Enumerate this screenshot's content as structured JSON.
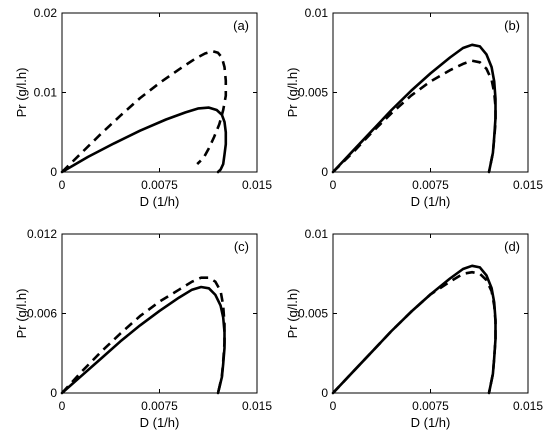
{
  "chart_data": [
    {
      "type": "line",
      "panel_label": "(a)",
      "xlabel": "D (1/h)",
      "ylabel": "Pr (g/l.h)",
      "xlim": [
        0,
        0.015
      ],
      "ylim": [
        0,
        0.02
      ],
      "xticks": [
        "0",
        "0.0075",
        "0.015"
      ],
      "xtick_values": [
        0,
        0.0075,
        0.015
      ],
      "yticks": [
        "0",
        "0.01",
        "0.02"
      ],
      "ytick_values": [
        0,
        0.01,
        0.02
      ],
      "series": [
        {
          "style": "solid",
          "x": [
            0,
            0.002,
            0.004,
            0.006,
            0.008,
            0.0095,
            0.0105,
            0.0113,
            0.0119,
            0.0123,
            0.0125,
            0.0126,
            0.0126,
            0.0125,
            0.0124,
            0.0122,
            0.012
          ],
          "y": [
            0,
            0.0019,
            0.0036,
            0.0052,
            0.0066,
            0.0075,
            0.008,
            0.0081,
            0.0078,
            0.0072,
            0.0063,
            0.005,
            0.0035,
            0.0022,
            0.001,
            0.0003,
            0
          ]
        },
        {
          "style": "dashed",
          "x": [
            0,
            0.0015,
            0.003,
            0.0045,
            0.006,
            0.0075,
            0.009,
            0.0102,
            0.011,
            0.0116,
            0.012,
            0.0123,
            0.0125,
            0.0126,
            0.0126,
            0.0124,
            0.0121,
            0.0117,
            0.0113,
            0.0109,
            0.0104
          ],
          "y": [
            0,
            0.0024,
            0.0048,
            0.0071,
            0.0093,
            0.0112,
            0.0129,
            0.0142,
            0.0149,
            0.0152,
            0.015,
            0.0144,
            0.0132,
            0.0115,
            0.0096,
            0.0078,
            0.006,
            0.0044,
            0.003,
            0.0018,
            0.001
          ]
        }
      ]
    },
    {
      "type": "line",
      "panel_label": "(b)",
      "xlabel": "D (1/h)",
      "ylabel": "Pr (g/l.h)",
      "xlim": [
        0,
        0.015
      ],
      "ylim": [
        0,
        0.01
      ],
      "xticks": [
        "0",
        "0.0075",
        "0.015"
      ],
      "xtick_values": [
        0,
        0.0075,
        0.015
      ],
      "yticks": [
        "0",
        "0.005",
        "0.01"
      ],
      "ytick_values": [
        0,
        0.005,
        0.01
      ],
      "series": [
        {
          "style": "solid",
          "x": [
            0,
            0.0015,
            0.003,
            0.0045,
            0.006,
            0.0075,
            0.009,
            0.01,
            0.0107,
            0.0113,
            0.0118,
            0.0122,
            0.0124,
            0.0125,
            0.0125,
            0.0124,
            0.0123,
            0.0121,
            0.012
          ],
          "y": [
            0,
            0.0013,
            0.0026,
            0.0039,
            0.0051,
            0.0062,
            0.0072,
            0.0078,
            0.008,
            0.0079,
            0.0074,
            0.0066,
            0.0057,
            0.0046,
            0.0034,
            0.0022,
            0.0012,
            0.0004,
            0
          ]
        },
        {
          "style": "dashed",
          "x": [
            0,
            0.0015,
            0.003,
            0.0045,
            0.006,
            0.0075,
            0.009,
            0.01,
            0.0107,
            0.0113,
            0.0118,
            0.0122,
            0.0124,
            0.0125,
            0.0125,
            0.0124,
            0.0123,
            0.0121,
            0.012
          ],
          "y": [
            0,
            0.0012,
            0.0025,
            0.0037,
            0.0048,
            0.0057,
            0.0064,
            0.0068,
            0.007,
            0.0069,
            0.0065,
            0.0058,
            0.005,
            0.0041,
            0.0031,
            0.0021,
            0.0012,
            0.0004,
            0
          ]
        }
      ]
    },
    {
      "type": "line",
      "panel_label": "(c)",
      "xlabel": "D (1/h)",
      "ylabel": "Pr (g/l.h)",
      "xlim": [
        0,
        0.015
      ],
      "ylim": [
        0,
        0.012
      ],
      "xticks": [
        "0",
        "0.0075",
        "0.015"
      ],
      "xtick_values": [
        0,
        0.0075,
        0.015
      ],
      "yticks": [
        "0",
        "0.006",
        "0.012"
      ],
      "ytick_values": [
        0,
        0.006,
        0.012
      ],
      "series": [
        {
          "style": "solid",
          "x": [
            0,
            0.0015,
            0.003,
            0.0045,
            0.006,
            0.0075,
            0.009,
            0.01,
            0.0107,
            0.0113,
            0.0118,
            0.0122,
            0.0124,
            0.0125,
            0.0125,
            0.0124,
            0.0123,
            0.0121,
            0.012
          ],
          "y": [
            0,
            0.0013,
            0.0026,
            0.0039,
            0.0051,
            0.0062,
            0.0072,
            0.0078,
            0.008,
            0.0079,
            0.0074,
            0.0066,
            0.0057,
            0.0046,
            0.0034,
            0.0022,
            0.0012,
            0.0004,
            0
          ]
        },
        {
          "style": "dashed",
          "x": [
            0,
            0.0015,
            0.003,
            0.0045,
            0.006,
            0.0075,
            0.009,
            0.01,
            0.0107,
            0.0113,
            0.0118,
            0.0122,
            0.0124,
            0.0125,
            0.0125,
            0.0124,
            0.0123,
            0.0121,
            0.012
          ],
          "y": [
            0,
            0.0016,
            0.0031,
            0.0045,
            0.0058,
            0.0069,
            0.0078,
            0.0084,
            0.0087,
            0.0087,
            0.0084,
            0.0077,
            0.0066,
            0.0052,
            0.0038,
            0.0024,
            0.0013,
            0.0004,
            0
          ]
        }
      ]
    },
    {
      "type": "line",
      "panel_label": "(d)",
      "xlabel": "D (1/h)",
      "ylabel": "Pr (g/l.h)",
      "xlim": [
        0,
        0.015
      ],
      "ylim": [
        0,
        0.01
      ],
      "xticks": [
        "0",
        "0.0075",
        "0.015"
      ],
      "xtick_values": [
        0,
        0.0075,
        0.015
      ],
      "yticks": [
        "0",
        "0.005",
        "0.01"
      ],
      "ytick_values": [
        0,
        0.005,
        0.01
      ],
      "series": [
        {
          "style": "solid",
          "x": [
            0,
            0.0015,
            0.003,
            0.0045,
            0.006,
            0.0075,
            0.009,
            0.01,
            0.0107,
            0.0113,
            0.0118,
            0.0122,
            0.0124,
            0.0125,
            0.0125,
            0.0124,
            0.0123,
            0.0121,
            0.012
          ],
          "y": [
            0,
            0.0013,
            0.0026,
            0.0039,
            0.0051,
            0.0062,
            0.0072,
            0.0078,
            0.008,
            0.0079,
            0.0074,
            0.0066,
            0.0057,
            0.0046,
            0.0034,
            0.0022,
            0.0012,
            0.0004,
            0
          ]
        },
        {
          "style": "dashed",
          "x": [
            0,
            0.0015,
            0.003,
            0.0045,
            0.006,
            0.0075,
            0.009,
            0.01,
            0.0107,
            0.0113,
            0.0118,
            0.0122,
            0.0124,
            0.0125,
            0.0125,
            0.0124,
            0.0123,
            0.0121,
            0.012
          ],
          "y": [
            0,
            0.0013,
            0.0026,
            0.0039,
            0.0051,
            0.0062,
            0.007,
            0.0075,
            0.0076,
            0.0075,
            0.0071,
            0.0064,
            0.0055,
            0.0045,
            0.0034,
            0.0022,
            0.0012,
            0.0004,
            0
          ]
        }
      ]
    }
  ]
}
